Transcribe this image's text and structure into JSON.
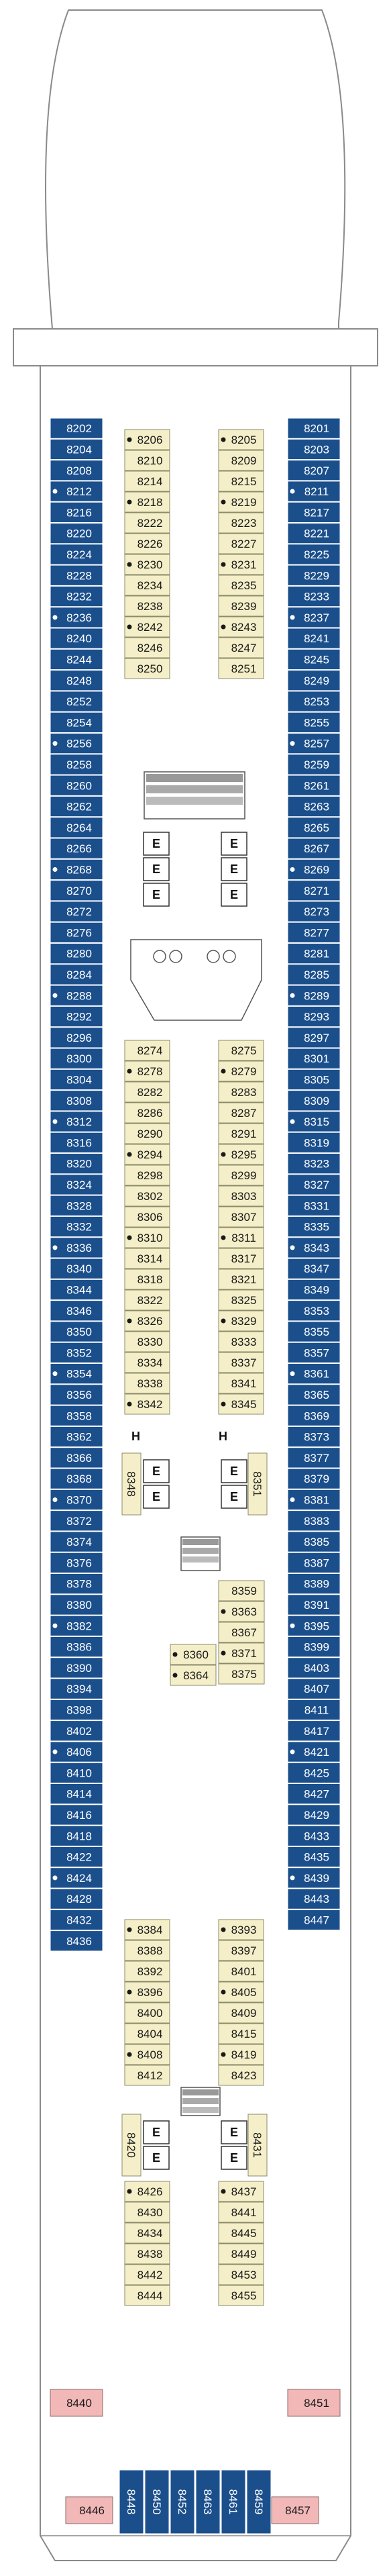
{
  "cabins": {
    "left_outer": [
      "8202",
      "8204",
      "8208",
      "8212",
      "8216",
      "8220",
      "8224",
      "8228",
      "8232",
      "8236",
      "8240",
      "8244",
      "8248",
      "8252",
      "8254",
      "8256",
      "8258",
      "8260",
      "8262",
      "8264",
      "8266",
      "8268",
      "8270",
      "8272",
      "8276",
      "8280",
      "8284",
      "8288",
      "8292",
      "8296",
      "8300",
      "8304",
      "8308",
      "8312",
      "8316",
      "8320",
      "8324",
      "8328",
      "8332",
      "8336",
      "8340",
      "8344",
      "8346",
      "8350",
      "8352",
      "8354",
      "8356",
      "8358",
      "8362",
      "8366",
      "8368",
      "8370",
      "8372",
      "8374",
      "8376",
      "8378",
      "8380",
      "8382",
      "8386",
      "8390",
      "8394",
      "8398",
      "8402",
      "8406",
      "8410",
      "8414",
      "8416",
      "8418",
      "8422",
      "8424",
      "8428",
      "8432",
      "8436"
    ],
    "right_outer": [
      "8201",
      "8203",
      "8207",
      "8211",
      "8217",
      "8221",
      "8225",
      "8229",
      "8233",
      "8237",
      "8241",
      "8245",
      "8249",
      "8253",
      "8255",
      "8257",
      "8259",
      "8261",
      "8263",
      "8265",
      "8267",
      "8269",
      "8271",
      "8273",
      "8277",
      "8281",
      "8285",
      "8289",
      "8293",
      "8297",
      "8301",
      "8305",
      "8309",
      "8315",
      "8319",
      "8323",
      "8327",
      "8331",
      "8335",
      "8343",
      "8347",
      "8349",
      "8353",
      "8355",
      "8357",
      "8361",
      "8365",
      "8369",
      "8373",
      "8377",
      "8379",
      "8381",
      "8383",
      "8385",
      "8387",
      "8389",
      "8391",
      "8395",
      "8399",
      "8403",
      "8407",
      "8411",
      "8417",
      "8421",
      "8425",
      "8427",
      "8429",
      "8433",
      "8435",
      "8439",
      "8443",
      "8447"
    ],
    "left_inner_a": [
      "8206",
      "8210",
      "8214",
      "8218",
      "8222",
      "8226",
      "8230",
      "8234",
      "8238",
      "8242",
      "8246",
      "8250"
    ],
    "right_inner_a": [
      "8205",
      "8209",
      "8215",
      "8219",
      "8223",
      "8227",
      "8231",
      "8235",
      "8239",
      "8243",
      "8247",
      "8251"
    ],
    "left_inner_b": [
      "8274",
      "8278",
      "8282",
      "8286",
      "8290",
      "8294",
      "8298",
      "8302",
      "8306",
      "8310",
      "8314",
      "8318",
      "8322",
      "8326",
      "8330",
      "8334",
      "8338",
      "8342"
    ],
    "right_inner_b": [
      "8275",
      "8279",
      "8283",
      "8287",
      "8291",
      "8295",
      "8299",
      "8303",
      "8307",
      "8311",
      "8317",
      "8321",
      "8325",
      "8329",
      "8333",
      "8337",
      "8341",
      "8345"
    ],
    "mid_left": [
      "8360",
      "8364"
    ],
    "mid_right": [
      "8359",
      "8363",
      "8367",
      "8371",
      "8375"
    ],
    "vertical_left": "8348",
    "vertical_right": "8351",
    "left_inner_c": [
      "8384",
      "8388",
      "8392",
      "8396",
      "8400",
      "8404",
      "8408",
      "8412"
    ],
    "right_inner_c": [
      "8393",
      "8397",
      "8401",
      "8405",
      "8409",
      "8415",
      "8419",
      "8423"
    ],
    "vertical_left_2": "8420",
    "vertical_right_2": "8431",
    "left_inner_d": [
      "8426",
      "8430",
      "8434",
      "8438",
      "8442",
      "8444"
    ],
    "right_inner_d": [
      "8437",
      "8441",
      "8445",
      "8449",
      "8453",
      "8455"
    ],
    "stern_left_pink": "8440",
    "stern_right_pink": "8451",
    "stern_corner_left": "8446",
    "stern_corner_right": "8457",
    "stern_row": [
      "8448",
      "8450",
      "8452",
      "8463",
      "8461",
      "8459"
    ]
  },
  "elevator_label": "E",
  "accessible_label": "H",
  "colors": {
    "balcony": "#1b4f8c",
    "interior": "#f4efc8",
    "suite": "#f2b8b8"
  }
}
